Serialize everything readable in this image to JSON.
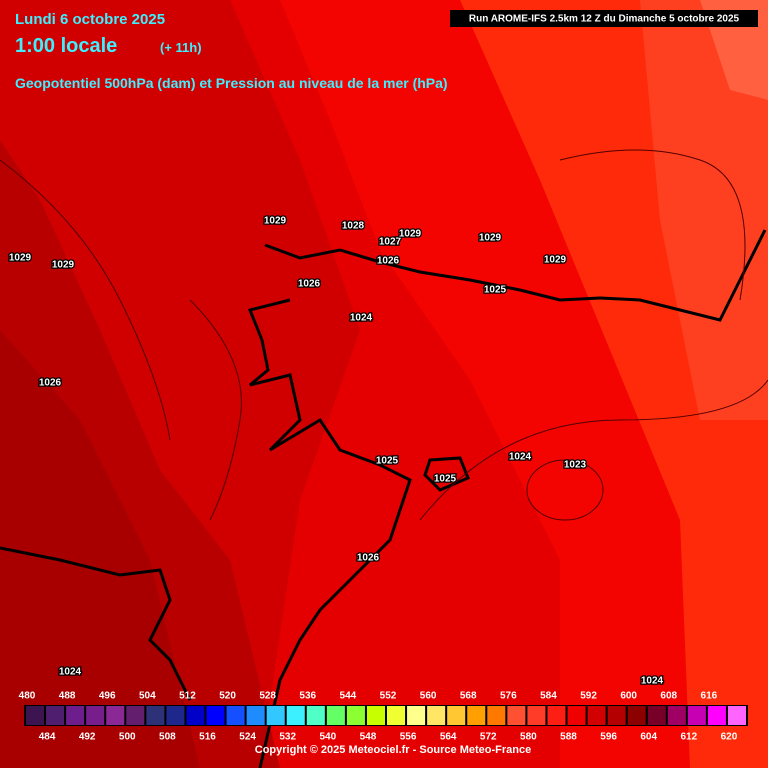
{
  "header": {
    "date": "Lundi 6 octobre 2025",
    "time": "1:00 locale",
    "offset": "(+ 11h)",
    "subtitle": "Geopotentiel 500hPa (dam) et Pression au niveau de la mer (hPa)",
    "run": "Run AROME-IFS 2.5km 12 Z du Dimanche 5 octobre 2025"
  },
  "pressure_labels": [
    1029,
    1028,
    1027,
    1029,
    1029,
    1026,
    1029,
    1029,
    1029,
    1026,
    1025,
    1024,
    1026,
    1025,
    1024,
    1023,
    1025,
    1026,
    1024,
    1024
  ],
  "legend": {
    "values": [
      480,
      484,
      488,
      492,
      496,
      500,
      504,
      508,
      512,
      516,
      520,
      524,
      528,
      532,
      536,
      540,
      544,
      548,
      552,
      556,
      560,
      564,
      568,
      572,
      576,
      580,
      584,
      588,
      592,
      596,
      600,
      604,
      608,
      612,
      616,
      620
    ],
    "colors": [
      "#3c1450",
      "#501e6e",
      "#6e1e8c",
      "#781e8c",
      "#8c2896",
      "#641e6e",
      "#2d3278",
      "#1e288c",
      "#0000c8",
      "#0000ff",
      "#1450ff",
      "#1e8cff",
      "#32c8ff",
      "#3cf0ff",
      "#50ffc8",
      "#64ff64",
      "#8cff32",
      "#c8ff00",
      "#f0ff32",
      "#ffff8c",
      "#ffe664",
      "#ffc832",
      "#ffa000",
      "#ff7800",
      "#ff5032",
      "#ff3c28",
      "#ff1e14",
      "#f00000",
      "#d20000",
      "#b40000",
      "#8c0000",
      "#780028",
      "#a00064",
      "#c800b4",
      "#ff00ff",
      "#ff64ff"
    ]
  },
  "footer": {
    "copyright": "Copyright © 2025 Meteociel.fr - Source Meteo-France"
  }
}
